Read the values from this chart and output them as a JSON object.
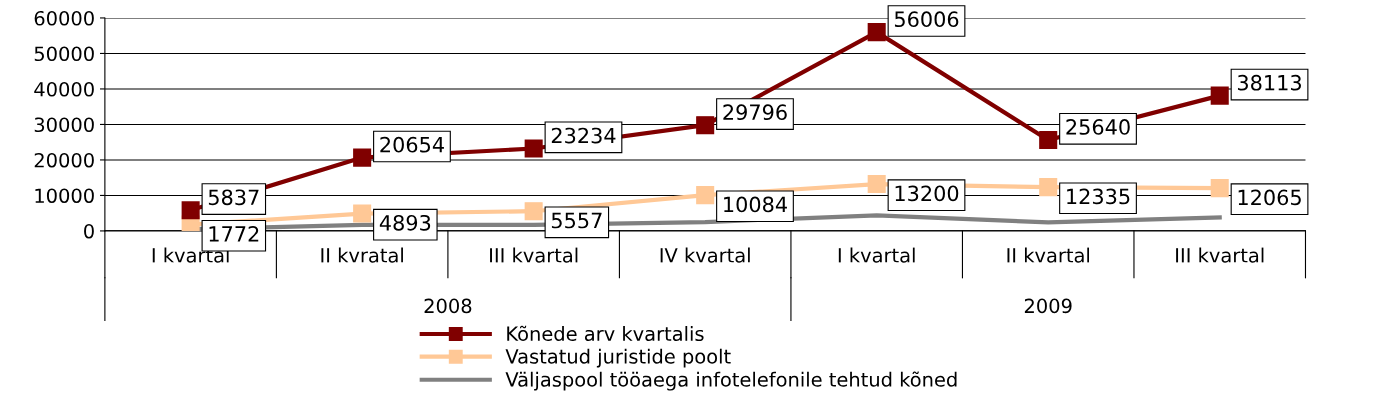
{
  "chart_data": {
    "type": "line",
    "categories": [
      "I kvartal",
      "II kvratal",
      "III kvartal",
      "IV kvartal",
      "I kvartal",
      "II kvartal",
      "III kvartal"
    ],
    "series": [
      {
        "name": "Kõnede arv kvartalis",
        "color": "#800000",
        "marker": "square",
        "values": [
          5837,
          20654,
          23234,
          29796,
          56006,
          25640,
          38113
        ],
        "value_labels": [
          "5837",
          "20654",
          "23234",
          "29796",
          "56006",
          "25640",
          "38113"
        ]
      },
      {
        "name": "Vastatud juristide poolt",
        "color": "#ffc896",
        "marker": "square",
        "values": [
          1772,
          4893,
          5557,
          10084,
          13200,
          12335,
          12065
        ],
        "value_labels": [
          "1772",
          "4893",
          "5557",
          "10084",
          "13200",
          "12335",
          "12065"
        ]
      },
      {
        "name": "Väljaspool tööaega infotelefonile tehtud kõned",
        "color": "#808080",
        "marker": "none",
        "values": [
          500,
          1700,
          1700,
          2500,
          4400,
          2400,
          3800
        ]
      }
    ],
    "annotations": [
      "2008",
      "2009"
    ],
    "ylim": [
      0,
      60000
    ],
    "yticks": [
      0,
      10000,
      20000,
      30000,
      40000,
      50000,
      60000
    ],
    "grid": "y",
    "legend": "bottom",
    "line_style": "solid"
  }
}
